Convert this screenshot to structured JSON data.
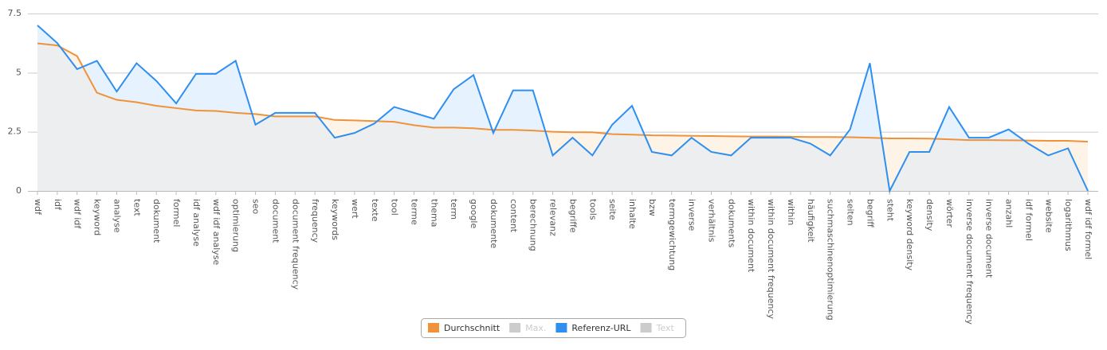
{
  "chart_data": {
    "type": "line",
    "categories": [
      "wdf",
      "idf",
      "wdf idf",
      "keyword",
      "analyse",
      "text",
      "dokument",
      "formel",
      "idf analyse",
      "wdf idf analyse",
      "optimierung",
      "seo",
      "document",
      "document frequency",
      "frequency",
      "keywords",
      "wert",
      "texte",
      "tool",
      "terme",
      "thema",
      "term",
      "google",
      "dokumente",
      "content",
      "berechnung",
      "relevanz",
      "begriffe",
      "tools",
      "seite",
      "inhalte",
      "bzw",
      "termgewichtung",
      "inverse",
      "verhältnis",
      "dokuments",
      "within document",
      "within document frequency",
      "within",
      "häufigkeit",
      "suchmaschinenoptimierung",
      "seiten",
      "begriff",
      "steht",
      "keyword density",
      "density",
      "wörter",
      "inverse document frequency",
      "inverse document",
      "anzahl",
      "idf formel",
      "website",
      "logarithmus",
      "wdf idf formel"
    ],
    "series": [
      {
        "name": "Durchschnitt",
        "color": "#f0923a",
        "fill": "#fdf3e7",
        "visible": true,
        "values": [
          6.24,
          6.15,
          5.7,
          4.15,
          3.85,
          3.75,
          3.6,
          3.5,
          3.4,
          3.38,
          3.3,
          3.25,
          3.15,
          3.15,
          3.15,
          3.0,
          2.98,
          2.95,
          2.92,
          2.78,
          2.68,
          2.68,
          2.65,
          2.58,
          2.58,
          2.55,
          2.5,
          2.48,
          2.48,
          2.4,
          2.38,
          2.35,
          2.34,
          2.33,
          2.32,
          2.31,
          2.3,
          2.3,
          2.29,
          2.28,
          2.28,
          2.27,
          2.25,
          2.22,
          2.22,
          2.21,
          2.18,
          2.15,
          2.15,
          2.14,
          2.13,
          2.12,
          2.12,
          2.08
        ]
      },
      {
        "name": "Max.",
        "color": "#cccccc",
        "visible": false
      },
      {
        "name": "Referenz-URL",
        "color": "#2f8ff0",
        "fill": "#e6f2fd",
        "visible": true,
        "values": [
          7.0,
          6.25,
          5.15,
          5.5,
          4.2,
          5.4,
          4.65,
          3.7,
          4.95,
          4.95,
          5.5,
          2.8,
          3.3,
          3.3,
          3.3,
          2.25,
          2.45,
          2.85,
          3.55,
          3.3,
          3.05,
          4.3,
          4.9,
          2.45,
          4.25,
          4.25,
          1.5,
          2.25,
          1.5,
          2.8,
          3.6,
          1.65,
          1.5,
          2.25,
          1.65,
          1.5,
          2.25,
          2.25,
          2.25,
          2.0,
          1.5,
          2.6,
          5.4,
          0,
          1.65,
          1.65,
          3.55,
          2.25,
          2.25,
          2.6,
          2.0,
          1.5,
          1.8,
          0
        ]
      },
      {
        "name": "Text",
        "color": "#cccccc",
        "visible": false
      }
    ],
    "overlap_fill": "#eceef0",
    "ylim": [
      0,
      7.5
    ],
    "yticks": [
      0,
      2.5,
      5,
      7.5
    ],
    "grid": true,
    "legend": "bottom"
  }
}
